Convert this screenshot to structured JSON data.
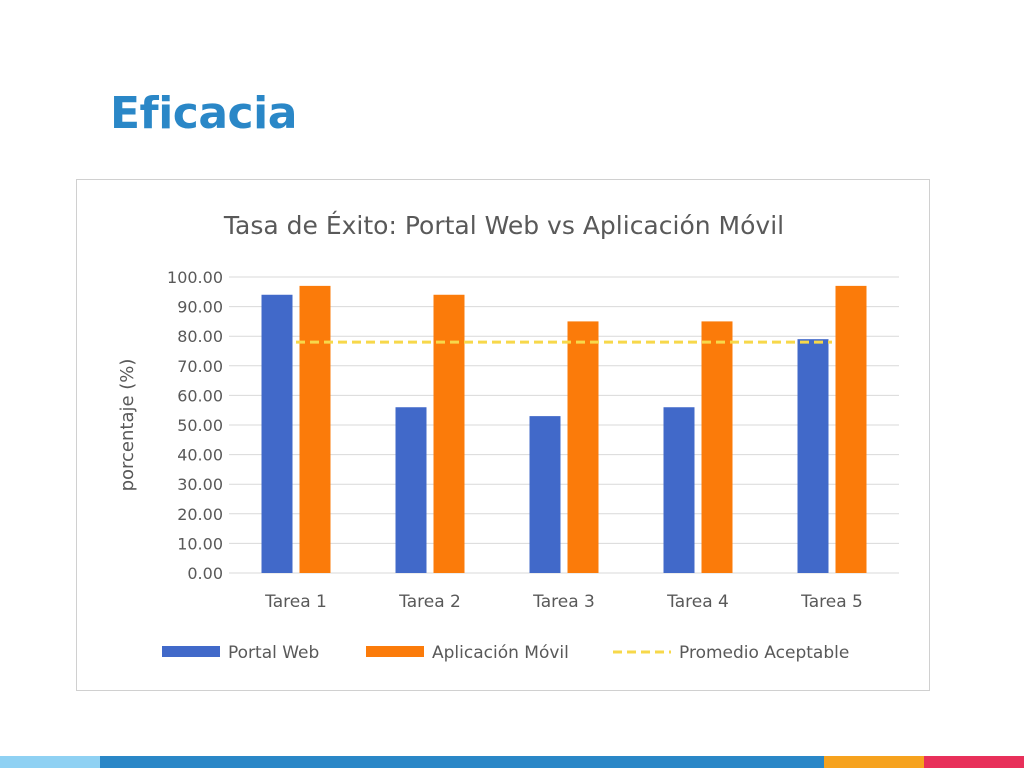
{
  "slide": {
    "title": "Eficacia"
  },
  "colors": {
    "title": "#2a87c7",
    "portal_web": "#4169c9",
    "aplicacion_movil": "#fb7b0a",
    "promedio": "#f7d84a",
    "grid": "#d9d9d9",
    "axis_text": "#595959",
    "footer": [
      "#8fd1f3",
      "#2a87c7",
      "#f6a21e",
      "#e8305a"
    ]
  },
  "chart_data": {
    "type": "bar",
    "title": "Tasa de Éxito: Portal Web vs Aplicación Móvil",
    "xlabel": "",
    "ylabel": "porcentaje (%)",
    "ylim": [
      0,
      100
    ],
    "yticks": [
      "0.00",
      "10.00",
      "20.00",
      "30.00",
      "40.00",
      "50.00",
      "60.00",
      "70.00",
      "80.00",
      "90.00",
      "100.00"
    ],
    "categories": [
      "Tarea 1",
      "Tarea 2",
      "Tarea 3",
      "Tarea 4",
      "Tarea 5"
    ],
    "series": [
      {
        "name": "Portal Web",
        "values": [
          94,
          56,
          53,
          56,
          79
        ]
      },
      {
        "name": "Aplicación Móvil",
        "values": [
          97,
          94,
          85,
          85,
          97
        ]
      }
    ],
    "reference_line": {
      "name": "Promedio Aceptable",
      "value": 78,
      "style": "dashed"
    },
    "legend_position": "bottom",
    "grid": true
  }
}
